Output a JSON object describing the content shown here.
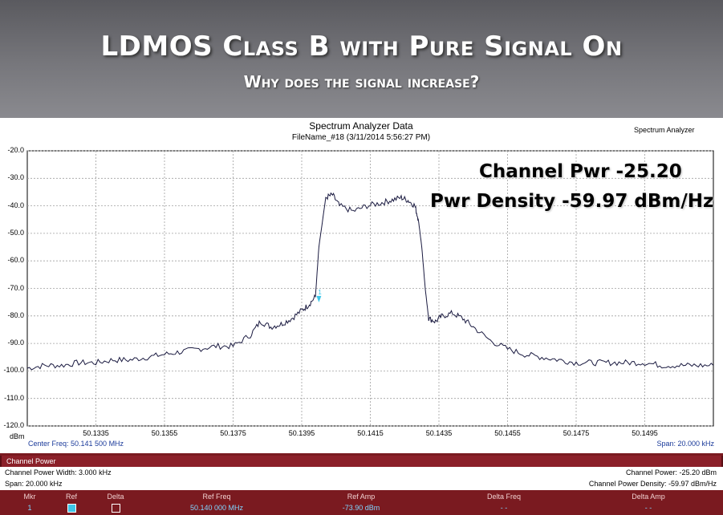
{
  "slide": {
    "title": "LDMOS Class B with Pure Signal On",
    "subtitle": "Why does the signal increase?"
  },
  "header": {
    "plot_title": "Spectrum Analyzer Data",
    "file_line": "FileName_#18 (3/11/2014 5:56:27 PM)",
    "app_label": "Spectrum Analyzer"
  },
  "annotations": {
    "line1": "Channel Pwr -25.20",
    "line2": "Pwr Density -59.97 dBm/Hz"
  },
  "footer": {
    "center_freq": "Center Freq: 50.141 500 MHz",
    "span": "Span: 20.000 kHz"
  },
  "channel_power": {
    "panel_title": "Channel Power",
    "width_label": "Channel Power Width: 3.000 kHz",
    "span_label": "Span: 20.000 kHz",
    "power_label": "Channel Power: -25.20 dBm",
    "density_label": "Channel Power Density: -59.97 dBm/Hz"
  },
  "marker_table": {
    "headers": [
      "Mkr",
      "Ref",
      "Delta",
      "Ref Freq",
      "Ref Amp",
      "Delta Freq",
      "Delta Amp"
    ],
    "row": {
      "mkr": "1",
      "ref_freq": "50.140 000 MHz",
      "ref_amp": "-73.90 dBm",
      "delta_freq": "- -",
      "delta_amp": "- -"
    },
    "colors": {
      "ref_swatch": "#3ec6e8"
    }
  },
  "colors": {
    "trace": "#1a1a40",
    "marker": "#3ec6e8",
    "grid": "#a0a0a0"
  },
  "chart_data": {
    "type": "line",
    "title": "Spectrum Analyzer Data",
    "ylabel": "dBm",
    "xlabel": "",
    "xlim": [
      50.1315,
      50.1515
    ],
    "ylim": [
      -120,
      -20
    ],
    "xticks": [
      "50.1335",
      "50.1355",
      "50.1375",
      "50.1395",
      "50.1415",
      "50.1435",
      "50.1455",
      "50.1475",
      "50.1495"
    ],
    "xtick_values": [
      50.1335,
      50.1355,
      50.1375,
      50.1395,
      50.1415,
      50.1435,
      50.1455,
      50.1475,
      50.1495
    ],
    "yticks": [
      "-20.0",
      "-30.0",
      "-40.0",
      "-50.0",
      "-60.0",
      "-70.0",
      "-80.0",
      "-90.0",
      "-100.0",
      "-110.0",
      "-120.0"
    ],
    "ytick_values": [
      -20,
      -30,
      -40,
      -50,
      -60,
      -70,
      -80,
      -90,
      -100,
      -110,
      -120
    ],
    "grid": true,
    "series": [
      {
        "x": [
          50.1315,
          50.132,
          50.1325,
          50.133,
          50.1335,
          50.134,
          50.1345,
          50.135,
          50.1355,
          50.136,
          50.1365,
          50.137,
          50.1375,
          50.138,
          50.1383,
          50.1386,
          50.1389,
          50.1392,
          50.1395,
          50.1397,
          50.1399,
          50.14,
          50.1402,
          50.1404,
          50.1406,
          50.141,
          50.1414,
          50.1418,
          50.1421,
          50.1424,
          50.1426,
          50.1428,
          50.1429,
          50.143,
          50.1431,
          50.1432,
          50.1434,
          50.1436,
          50.1439,
          50.1442,
          50.1445,
          50.145,
          50.1455,
          50.146,
          50.1465,
          50.147,
          50.1475,
          50.148,
          50.1485,
          50.149,
          50.1495,
          50.15,
          50.1505,
          50.151,
          50.1515
        ],
        "y": [
          -99,
          -98,
          -98,
          -97,
          -97,
          -96,
          -96,
          -95,
          -94,
          -93,
          -92,
          -91,
          -91,
          -87,
          -82,
          -84,
          -83,
          -81,
          -78,
          -76,
          -73,
          -55,
          -37,
          -36,
          -40,
          -42,
          -40,
          -39,
          -38,
          -37,
          -38,
          -40,
          -45,
          -55,
          -70,
          -81,
          -82,
          -80,
          -79,
          -81,
          -84,
          -89,
          -92,
          -94,
          -95,
          -96,
          -97,
          -97,
          -97,
          -97,
          -97,
          -98,
          -98,
          -98,
          -98
        ]
      }
    ],
    "markers": [
      {
        "label": "1",
        "x": 50.14,
        "y": -73.9
      }
    ]
  }
}
